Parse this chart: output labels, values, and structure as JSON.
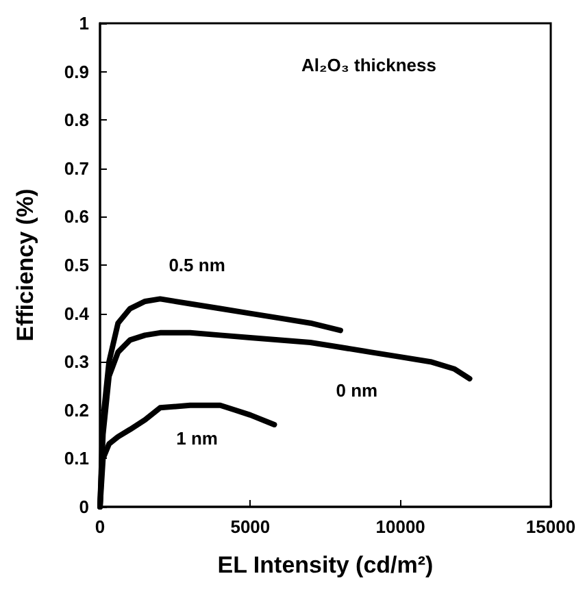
{
  "chart_data": {
    "type": "line",
    "title": "Al₂O₃ thickness",
    "xlabel": "EL Intensity (cd/m²)",
    "ylabel": "Efficiency (%)",
    "xlim": [
      0,
      15000
    ],
    "xticks": [
      0,
      5000,
      10000,
      15000
    ],
    "ylim": [
      0,
      1
    ],
    "yticks": [
      0,
      0.1,
      0.2,
      0.3,
      0.4,
      0.5,
      0.6,
      0.7,
      0.8,
      0.9,
      1
    ],
    "grid": false,
    "legend": false,
    "marker": "none",
    "line_style": "solid",
    "series": [
      {
        "name": "0.5 nm",
        "color": "#000000",
        "x": [
          0,
          100,
          300,
          600,
          1000,
          1500,
          2000,
          3000,
          4000,
          5000,
          6000,
          7000,
          8000
        ],
        "values": [
          0,
          0.18,
          0.3,
          0.38,
          0.41,
          0.425,
          0.43,
          0.42,
          0.41,
          0.4,
          0.39,
          0.38,
          0.365
        ]
      },
      {
        "name": "0 nm",
        "color": "#000000",
        "x": [
          0,
          100,
          300,
          600,
          1000,
          1500,
          2000,
          3000,
          4000,
          5000,
          6000,
          7000,
          8000,
          9000,
          10000,
          11000,
          11800,
          12300
        ],
        "values": [
          0,
          0.15,
          0.27,
          0.32,
          0.345,
          0.355,
          0.36,
          0.36,
          0.355,
          0.35,
          0.345,
          0.34,
          0.33,
          0.32,
          0.31,
          0.3,
          0.285,
          0.265
        ]
      },
      {
        "name": "1 nm",
        "color": "#000000",
        "x": [
          0,
          100,
          300,
          600,
          1000,
          1500,
          2000,
          3000,
          4000,
          4500,
          5000,
          5800
        ],
        "values": [
          0,
          0.1,
          0.13,
          0.145,
          0.16,
          0.18,
          0.205,
          0.21,
          0.21,
          0.2,
          0.19,
          0.17
        ]
      }
    ]
  }
}
